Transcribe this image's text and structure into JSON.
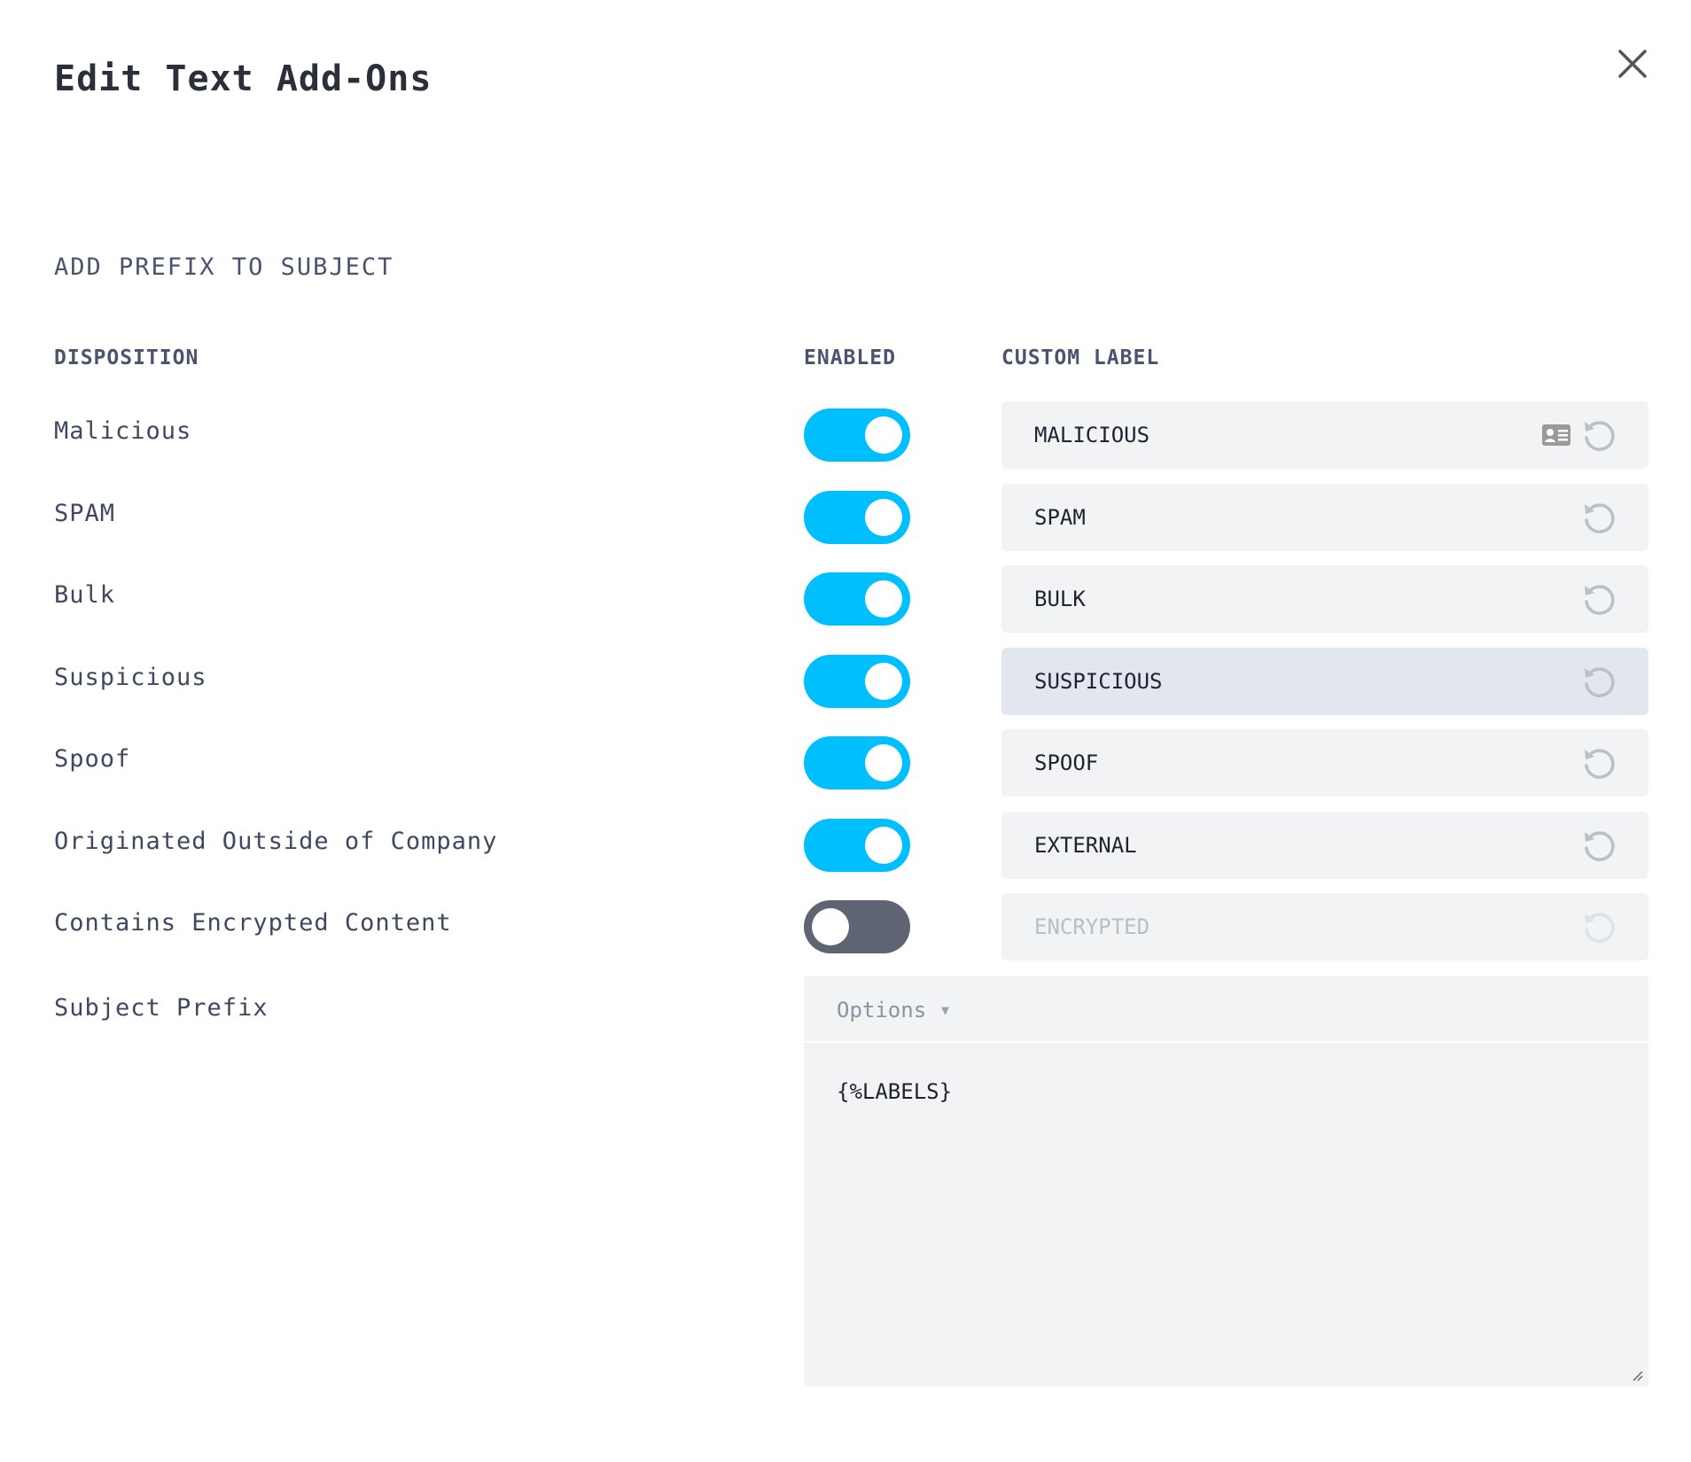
{
  "dialog": {
    "title": "Edit Text Add-Ons",
    "close_icon": "close-icon"
  },
  "section_title": "ADD PREFIX TO SUBJECT",
  "columns": {
    "disposition": "DISPOSITION",
    "enabled": "ENABLED",
    "custom_label": "CUSTOM LABEL"
  },
  "colors": {
    "toggle_on": "#00bfff",
    "toggle_off": "#5f6472",
    "field_bg": "#f1f3f5",
    "field_highlight": "#e2e7ef"
  },
  "rows": [
    {
      "disposition": "Malicious",
      "enabled": true,
      "label": "MALICIOUS",
      "has_card_icon": true
    },
    {
      "disposition": "SPAM",
      "enabled": true,
      "label": "SPAM"
    },
    {
      "disposition": "Bulk",
      "enabled": true,
      "label": "BULK"
    },
    {
      "disposition": "Suspicious",
      "enabled": true,
      "label": "SUSPICIOUS",
      "highlighted": true
    },
    {
      "disposition": "Spoof",
      "enabled": true,
      "label": "SPOOF"
    },
    {
      "disposition": "Originated Outside of Company",
      "enabled": true,
      "label": "EXTERNAL"
    },
    {
      "disposition": "Contains Encrypted Content",
      "enabled": false,
      "label": "ENCRYPTED"
    }
  ],
  "subject_prefix": {
    "label": "Subject Prefix",
    "options_label": "Options",
    "value": "{%LABELS}"
  }
}
